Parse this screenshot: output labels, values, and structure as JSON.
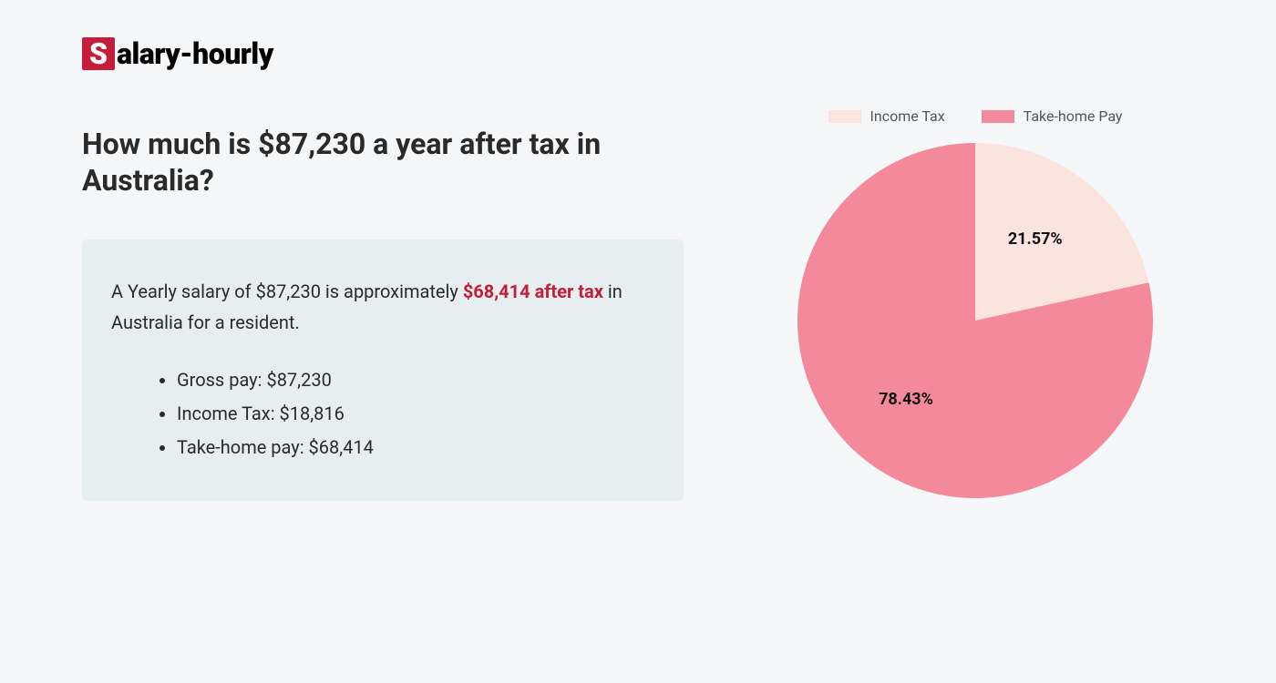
{
  "logo": {
    "mark": "S",
    "text": "alary-hourly"
  },
  "heading": "How much is $87,230 a year after tax in Australia?",
  "summary": {
    "prefix": "A Yearly salary of $87,230 is approximately ",
    "highlight": "$68,414 after tax",
    "suffix": " in Australia for a resident.",
    "items": [
      "Gross pay: $87,230",
      "Income Tax: $18,816",
      "Take-home pay: $68,414"
    ]
  },
  "chart": {
    "type": "pie",
    "radius": 195,
    "background_color": "#f5f7f9",
    "slices": [
      {
        "label": "Income Tax",
        "value": 21.57,
        "pct_text": "21.57%",
        "color": "#fbe3de"
      },
      {
        "label": "Take-home Pay",
        "value": 78.43,
        "pct_text": "78.43%",
        "color": "#f3899b"
      }
    ],
    "legend_label_color": "#555555",
    "legend_fontsize": 16,
    "slice_label_fontsize": 18,
    "slice_label_color": "#111111"
  }
}
